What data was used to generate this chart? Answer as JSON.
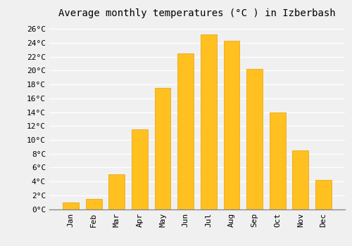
{
  "title": "Average monthly temperatures (°C ) in Izberbash",
  "months": [
    "Jan",
    "Feb",
    "Mar",
    "Apr",
    "May",
    "Jun",
    "Jul",
    "Aug",
    "Sep",
    "Oct",
    "Nov",
    "Dec"
  ],
  "values": [
    1.0,
    1.5,
    5.0,
    11.5,
    17.5,
    22.5,
    25.2,
    24.3,
    20.3,
    14.0,
    8.5,
    4.2
  ],
  "bar_color": "#FFC020",
  "bar_edge_color": "#E8A000",
  "background_color": "#f0f0f0",
  "grid_color": "#ffffff",
  "yticks": [
    0,
    2,
    4,
    6,
    8,
    10,
    12,
    14,
    16,
    18,
    20,
    22,
    24,
    26
  ],
  "ylim": [
    0,
    27
  ],
  "title_fontsize": 10,
  "tick_fontsize": 8,
  "font_family": "monospace"
}
